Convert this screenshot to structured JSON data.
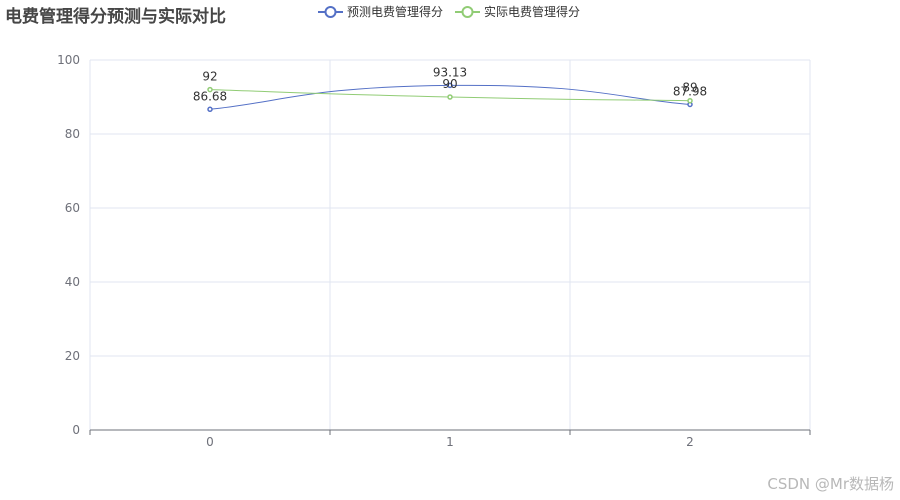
{
  "chart_data": {
    "type": "line",
    "title": "电费管理得分预测与实际对比",
    "categories": [
      "0",
      "1",
      "2"
    ],
    "ylim": [
      0,
      100
    ],
    "yticks": [
      0,
      20,
      40,
      60,
      80,
      100
    ],
    "smooth": true,
    "grid": true,
    "legend_position": "top",
    "series": [
      {
        "name": "预测电费管理得分",
        "values": [
          86.68,
          93.13,
          87.98
        ],
        "labels": [
          "86.68",
          "93.13",
          "87.98"
        ],
        "color": "#5470c6"
      },
      {
        "name": "实际电费管理得分",
        "values": [
          92,
          90,
          89
        ],
        "labels": [
          "92",
          "90",
          "89"
        ],
        "color": "#91cc75"
      }
    ]
  },
  "watermark": "CSDN @Mr数据杨"
}
